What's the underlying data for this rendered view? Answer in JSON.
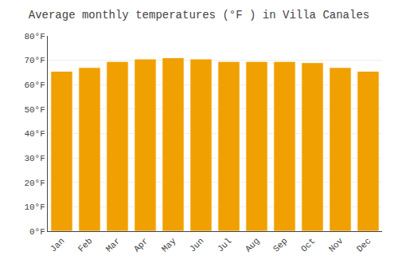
{
  "chart_data": {
    "type": "bar",
    "title": "Average monthly temperatures (°F ) in Villa Canales",
    "categories": [
      "Jan",
      "Feb",
      "Mar",
      "Apr",
      "May",
      "Jun",
      "Jul",
      "Aug",
      "Sep",
      "Oct",
      "Nov",
      "Dec"
    ],
    "values": [
      65.5,
      67.0,
      69.5,
      70.5,
      71.0,
      70.5,
      69.5,
      69.5,
      69.5,
      69.0,
      67.0,
      65.5
    ],
    "color": "#F0A000",
    "ylim": [
      0,
      80
    ],
    "yticks": [
      {
        "value": 0,
        "label": "0°F"
      },
      {
        "value": 10,
        "label": "10°F"
      },
      {
        "value": 20,
        "label": "20°F"
      },
      {
        "value": 30,
        "label": "30°F"
      },
      {
        "value": 40,
        "label": "40°F"
      },
      {
        "value": 50,
        "label": "50°F"
      },
      {
        "value": 60,
        "label": "60°F"
      },
      {
        "value": 70,
        "label": "70°F"
      },
      {
        "value": 80,
        "label": "80°F"
      }
    ],
    "grid": true
  }
}
